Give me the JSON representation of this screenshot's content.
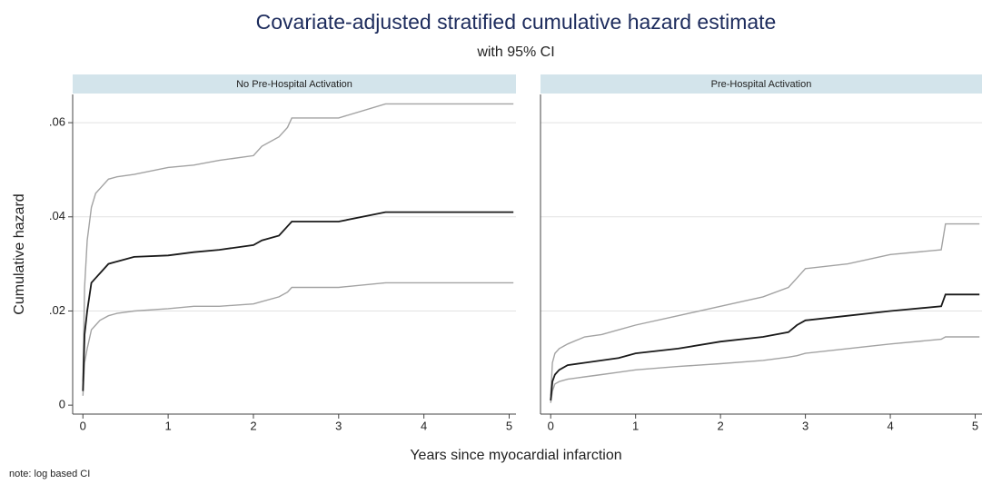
{
  "figure": {
    "title": "Covariate-adjusted stratified cumulative hazard estimate",
    "subtitle": "with 95% CI",
    "xlabel": "Years since myocardial infarction",
    "ylabel": "Cumulative hazard",
    "note": "note: log based CI"
  },
  "chart_data": [
    {
      "type": "line",
      "title": "No Pre-Hospital Activation",
      "x": [
        0,
        0.02,
        0.05,
        0.1,
        0.15,
        0.2,
        0.3,
        0.4,
        0.6,
        1.0,
        1.3,
        1.6,
        2.0,
        2.1,
        2.3,
        2.4,
        2.45,
        3.0,
        3.55,
        4.0,
        5.05
      ],
      "series": [
        {
          "color": "#a3a3a3",
          "values": [
            0.005,
            0.025,
            0.035,
            0.042,
            0.045,
            0.046,
            0.048,
            0.0485,
            0.049,
            0.0505,
            0.051,
            0.052,
            0.053,
            0.055,
            0.057,
            0.059,
            0.061,
            0.061,
            0.064,
            0.064,
            0.064
          ]
        },
        {
          "color": "#a3a3a3",
          "values": [
            0.002,
            0.009,
            0.012,
            0.016,
            0.017,
            0.018,
            0.019,
            0.0195,
            0.02,
            0.0205,
            0.021,
            0.021,
            0.0215,
            0.022,
            0.023,
            0.024,
            0.025,
            0.025,
            0.026,
            0.026,
            0.026
          ]
        },
        {
          "color": "#1a1a1a",
          "values": [
            0.003,
            0.015,
            0.02,
            0.026,
            0.027,
            0.028,
            0.03,
            0.0305,
            0.0315,
            0.0318,
            0.0325,
            0.033,
            0.034,
            0.035,
            0.036,
            0.038,
            0.039,
            0.039,
            0.041,
            0.041,
            0.041
          ]
        }
      ],
      "xlim": [
        -0.12,
        5.08
      ],
      "ylim": [
        -0.0019,
        0.066
      ],
      "xticks": [
        0,
        1,
        2,
        3,
        4,
        5
      ],
      "yticks": [
        0,
        {
          "value": 0.02,
          "label": ".02"
        },
        {
          "value": 0.04,
          "label": ".04"
        },
        {
          "value": 0.06,
          "label": ".06"
        }
      ],
      "grid": true
    },
    {
      "type": "line",
      "title": "Pre-Hospital Activation",
      "x": [
        0,
        0.02,
        0.05,
        0.1,
        0.2,
        0.4,
        0.6,
        0.8,
        1.0,
        1.5,
        2.0,
        2.5,
        2.8,
        2.9,
        3.0,
        3.5,
        4.0,
        4.6,
        4.65,
        5.05
      ],
      "series": [
        {
          "color": "#a3a3a3",
          "values": [
            0.002,
            0.009,
            0.011,
            0.012,
            0.013,
            0.0145,
            0.015,
            0.016,
            0.017,
            0.019,
            0.021,
            0.023,
            0.025,
            0.027,
            0.029,
            0.03,
            0.032,
            0.033,
            0.0385,
            0.0385
          ]
        },
        {
          "color": "#a3a3a3",
          "values": [
            0.0005,
            0.003,
            0.0045,
            0.005,
            0.0055,
            0.006,
            0.0065,
            0.007,
            0.0075,
            0.0082,
            0.0088,
            0.0095,
            0.0102,
            0.0105,
            0.011,
            0.012,
            0.013,
            0.014,
            0.0145,
            0.0145
          ]
        },
        {
          "color": "#1a1a1a",
          "values": [
            0.001,
            0.005,
            0.0065,
            0.0075,
            0.0085,
            0.009,
            0.0095,
            0.01,
            0.011,
            0.012,
            0.0135,
            0.0145,
            0.0155,
            0.017,
            0.018,
            0.019,
            0.02,
            0.021,
            0.0235,
            0.0235
          ]
        }
      ],
      "xlim": [
        -0.12,
        5.08
      ],
      "ylim": [
        -0.0019,
        0.066
      ],
      "xticks": [
        0,
        1,
        2,
        3,
        4,
        5
      ],
      "yticks": [
        0,
        {
          "value": 0.02,
          "label": ".02"
        },
        {
          "value": 0.04,
          "label": ".04"
        },
        {
          "value": 0.06,
          "label": ".06"
        }
      ],
      "grid": true
    }
  ]
}
